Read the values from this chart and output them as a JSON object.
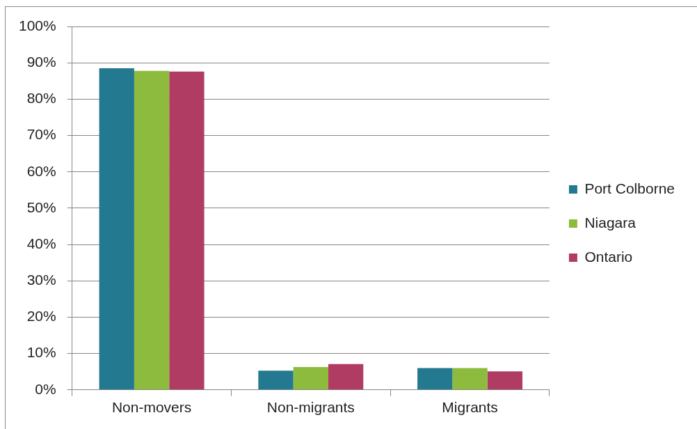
{
  "chart_data": {
    "type": "bar",
    "categories": [
      "Non-movers",
      "Non-migrants",
      "Migrants"
    ],
    "series": [
      {
        "name": "Port Colborne",
        "color": "#23798f",
        "values": [
          88.5,
          5.3,
          6.0
        ]
      },
      {
        "name": "Niagara",
        "color": "#8dbb3d",
        "values": [
          87.8,
          6.3,
          6.0
        ]
      },
      {
        "name": "Ontario",
        "color": "#b03b63",
        "values": [
          87.6,
          7.1,
          5.1
        ]
      }
    ],
    "ylim": [
      0,
      100
    ],
    "yticks": [
      {
        "value": 0,
        "label": "0%"
      },
      {
        "value": 10,
        "label": "10%"
      },
      {
        "value": 20,
        "label": "20%"
      },
      {
        "value": 30,
        "label": "30%"
      },
      {
        "value": 40,
        "label": "40%"
      },
      {
        "value": 50,
        "label": "50%"
      },
      {
        "value": 60,
        "label": "60%"
      },
      {
        "value": 70,
        "label": "70%"
      },
      {
        "value": 80,
        "label": "80%"
      },
      {
        "value": 90,
        "label": "90%"
      },
      {
        "value": 100,
        "label": "100%"
      }
    ],
    "grid": "y",
    "legend": "right"
  }
}
